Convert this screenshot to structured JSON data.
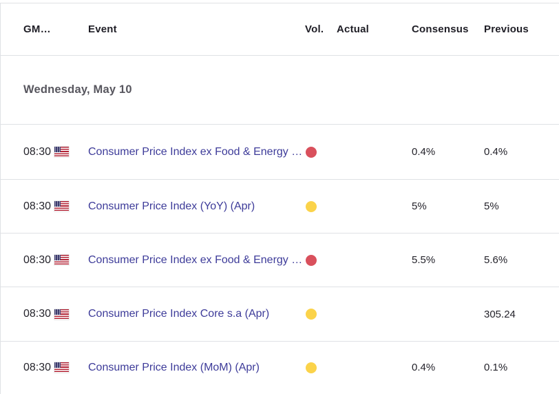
{
  "table": {
    "columns": [
      {
        "id": "gmt",
        "label": "GM…"
      },
      {
        "id": "event",
        "label": "Event"
      },
      {
        "id": "vol",
        "label": "Vol."
      },
      {
        "id": "actual",
        "label": "Actual"
      },
      {
        "id": "consensus",
        "label": "Consensus"
      },
      {
        "id": "previous",
        "label": "Previous"
      }
    ],
    "date_header": "Wednesday, May 10",
    "rows": [
      {
        "time": "08:30",
        "flag": "us-flag",
        "event": "Consumer Price Index ex Food & Energy …",
        "vol_level": "high",
        "vol_color": "#d9505c",
        "actual": "",
        "consensus": "0.4%",
        "previous": "0.4%"
      },
      {
        "time": "08:30",
        "flag": "us-flag",
        "event": "Consumer Price Index (YoY) (Apr)",
        "vol_level": "medium",
        "vol_color": "#fbd34a",
        "actual": "",
        "consensus": "5%",
        "previous": "5%"
      },
      {
        "time": "08:30",
        "flag": "us-flag",
        "event": "Consumer Price Index ex Food & Energy …",
        "vol_level": "high",
        "vol_color": "#d9505c",
        "actual": "",
        "consensus": "5.5%",
        "previous": "5.6%"
      },
      {
        "time": "08:30",
        "flag": "us-flag",
        "event": "Consumer Price Index Core s.a (Apr)",
        "vol_level": "medium",
        "vol_color": "#fbd34a",
        "actual": "",
        "consensus": "",
        "previous": "305.24"
      },
      {
        "time": "08:30",
        "flag": "us-flag",
        "event": "Consumer Price Index (MoM) (Apr)",
        "vol_level": "medium",
        "vol_color": "#fbd34a",
        "actual": "",
        "consensus": "0.4%",
        "previous": "0.1%"
      }
    ]
  },
  "colors": {
    "event_link": "#3d3b99",
    "divider": "#dfe1e5",
    "header_text": "#1f1e26",
    "date_text": "#57565e",
    "value_text": "#24232b",
    "volatility_high": "#d9505c",
    "volatility_medium": "#fbd34a"
  }
}
